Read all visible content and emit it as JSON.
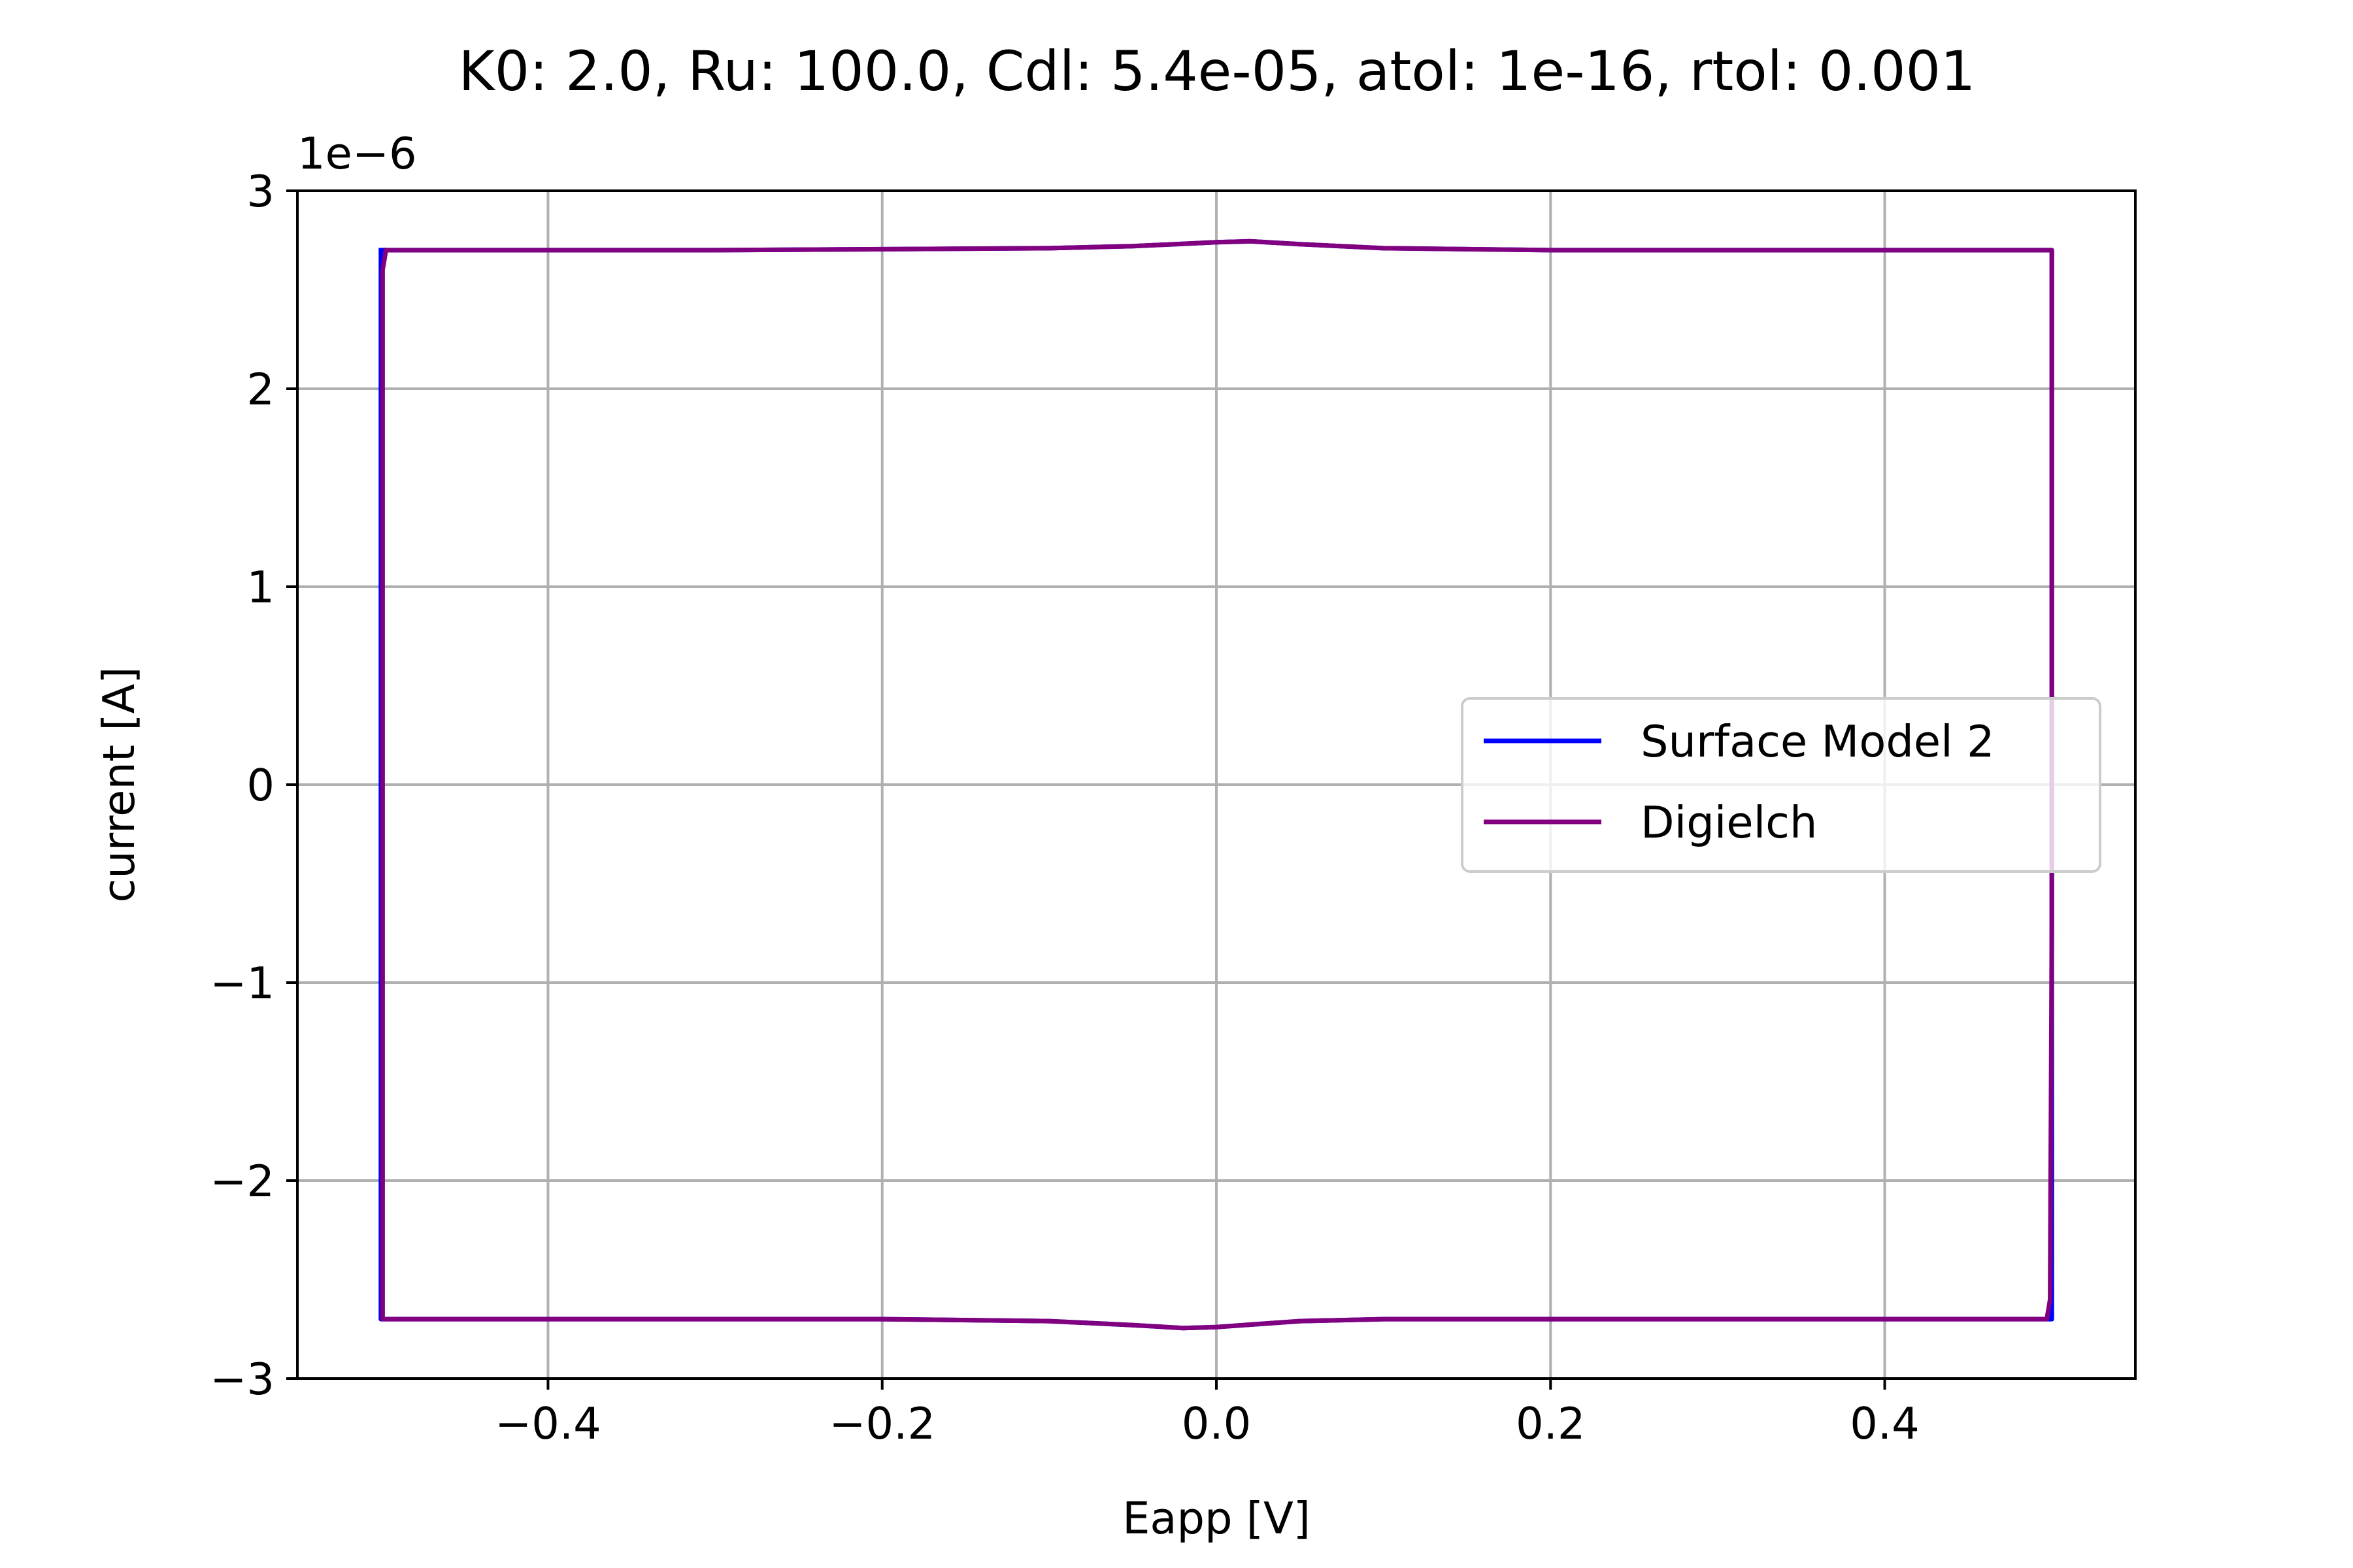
{
  "chart_data": {
    "type": "line",
    "title": "K0: 2.0, Ru: 100.0, Cdl: 5.4e-05, atol: 1e-16, rtol: 0.001",
    "xlabel": "Eapp [V]",
    "ylabel": "current [A]",
    "y_offset_label": "1e−6",
    "xlim": [
      -0.55,
      0.55
    ],
    "ylim": [
      -3,
      3
    ],
    "x_ticks": [
      -0.4,
      -0.2,
      0.0,
      0.2,
      0.4
    ],
    "x_tick_labels": [
      "−0.4",
      "−0.2",
      "0.0",
      "0.2",
      "0.4"
    ],
    "y_ticks": [
      -3,
      -2,
      -1,
      0,
      1,
      2,
      3
    ],
    "y_tick_labels": [
      "−3",
      "−2",
      "−1",
      "0",
      "1",
      "2",
      "3"
    ],
    "y_unit_scale": "1e-6",
    "grid": true,
    "legend_position": "center-right",
    "series": [
      {
        "name": "Surface Model 2",
        "color": "#0000ff",
        "points": [
          [
            -0.5,
            2.7
          ],
          [
            -0.3,
            2.7
          ],
          [
            -0.1,
            2.71
          ],
          [
            -0.05,
            2.72
          ],
          [
            0.0,
            2.74
          ],
          [
            0.02,
            2.745
          ],
          [
            0.05,
            2.73
          ],
          [
            0.1,
            2.71
          ],
          [
            0.2,
            2.7
          ],
          [
            0.4,
            2.7
          ],
          [
            0.5,
            2.7
          ],
          [
            0.5,
            -2.7
          ],
          [
            0.4,
            -2.7
          ],
          [
            0.2,
            -2.7
          ],
          [
            0.1,
            -2.7
          ],
          [
            0.05,
            -2.71
          ],
          [
            0.0,
            -2.74
          ],
          [
            -0.02,
            -2.745
          ],
          [
            -0.05,
            -2.73
          ],
          [
            -0.1,
            -2.71
          ],
          [
            -0.2,
            -2.7
          ],
          [
            -0.4,
            -2.7
          ],
          [
            -0.5,
            -2.7
          ],
          [
            -0.5,
            2.7
          ]
        ]
      },
      {
        "name": "Digielch",
        "color": "#800080",
        "points": [
          [
            -0.497,
            2.7
          ],
          [
            -0.3,
            2.7
          ],
          [
            -0.1,
            2.71
          ],
          [
            -0.05,
            2.72
          ],
          [
            0.0,
            2.74
          ],
          [
            0.02,
            2.745
          ],
          [
            0.05,
            2.73
          ],
          [
            0.1,
            2.71
          ],
          [
            0.2,
            2.7
          ],
          [
            0.4,
            2.7
          ],
          [
            0.5,
            2.7
          ],
          [
            0.5,
            -0.72
          ],
          [
            0.499,
            -2.6
          ],
          [
            0.497,
            -2.7
          ],
          [
            0.4,
            -2.7
          ],
          [
            0.2,
            -2.7
          ],
          [
            0.1,
            -2.7
          ],
          [
            0.05,
            -2.71
          ],
          [
            0.0,
            -2.74
          ],
          [
            -0.02,
            -2.745
          ],
          [
            -0.05,
            -2.73
          ],
          [
            -0.1,
            -2.71
          ],
          [
            -0.2,
            -2.7
          ],
          [
            -0.4,
            -2.7
          ],
          [
            -0.499,
            -2.7
          ],
          [
            -0.499,
            2.6
          ],
          [
            -0.497,
            2.7
          ]
        ]
      }
    ]
  }
}
